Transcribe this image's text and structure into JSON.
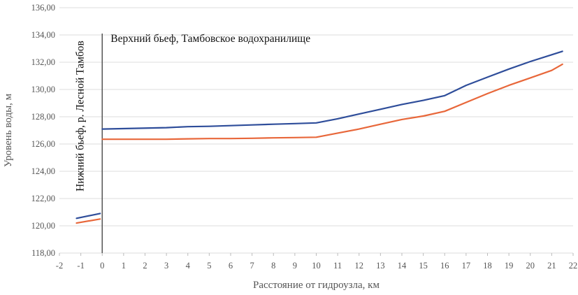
{
  "chart_data": {
    "type": "line",
    "title": "",
    "xlabel": "Расстояние от гидроузла, км",
    "ylabel": "Уровень воды, м",
    "xlim": [
      -2,
      22
    ],
    "ylim": [
      118,
      136
    ],
    "x_ticks": [
      -2,
      -1,
      0,
      1,
      2,
      3,
      4,
      5,
      6,
      7,
      8,
      9,
      10,
      11,
      12,
      13,
      14,
      15,
      16,
      17,
      18,
      19,
      20,
      21,
      22
    ],
    "x_tick_labels": [
      "-2",
      "-1",
      "0",
      "1",
      "2",
      "3",
      "4",
      "5",
      "6",
      "7",
      "8",
      "9",
      "10",
      "11",
      "12",
      "13",
      "14",
      "15",
      "16",
      "17",
      "18",
      "19",
      "20",
      "21",
      "22"
    ],
    "y_ticks": [
      118,
      120,
      122,
      124,
      126,
      128,
      130,
      132,
      134,
      136
    ],
    "y_tick_labels": [
      "118,00",
      "120,00",
      "122,00",
      "124,00",
      "126,00",
      "128,00",
      "130,00",
      "132,00",
      "134,00",
      "136,00"
    ],
    "grid": "horizontal",
    "dam_line_x": 0,
    "annotations": {
      "upstream": "Верхний бьеф, Тамбовское водохранилище",
      "downstream": "Нижний бьеф, р. Лесной Тамбов"
    },
    "series": [
      {
        "color": "#2e4d9a",
        "segments": [
          {
            "x": [
              -1.2,
              -0.1
            ],
            "y": [
              120.55,
              120.9
            ]
          },
          {
            "x": [
              0,
              3,
              4,
              5,
              6,
              7,
              8,
              9,
              10,
              11,
              12,
              13,
              14,
              15,
              16,
              17,
              18,
              19,
              20,
              21,
              21.5
            ],
            "y": [
              127.1,
              127.2,
              127.27,
              127.3,
              127.35,
              127.4,
              127.45,
              127.5,
              127.55,
              127.85,
              128.2,
              128.55,
              128.9,
              129.2,
              129.55,
              130.3,
              130.9,
              131.5,
              132.05,
              132.55,
              132.8
            ]
          }
        ]
      },
      {
        "color": "#e8673a",
        "segments": [
          {
            "x": [
              -1.2,
              -0.1
            ],
            "y": [
              120.2,
              120.5
            ]
          },
          {
            "x": [
              0,
              3,
              4,
              5,
              6,
              7,
              8,
              9,
              10,
              11,
              12,
              13,
              14,
              15,
              16,
              17,
              18,
              19,
              20,
              21,
              21.5
            ],
            "y": [
              126.35,
              126.35,
              126.38,
              126.4,
              126.4,
              126.42,
              126.45,
              126.47,
              126.5,
              126.8,
              127.1,
              127.45,
              127.8,
              128.05,
              128.4,
              129.05,
              129.7,
              130.3,
              130.85,
              131.4,
              131.85
            ]
          }
        ]
      }
    ]
  }
}
